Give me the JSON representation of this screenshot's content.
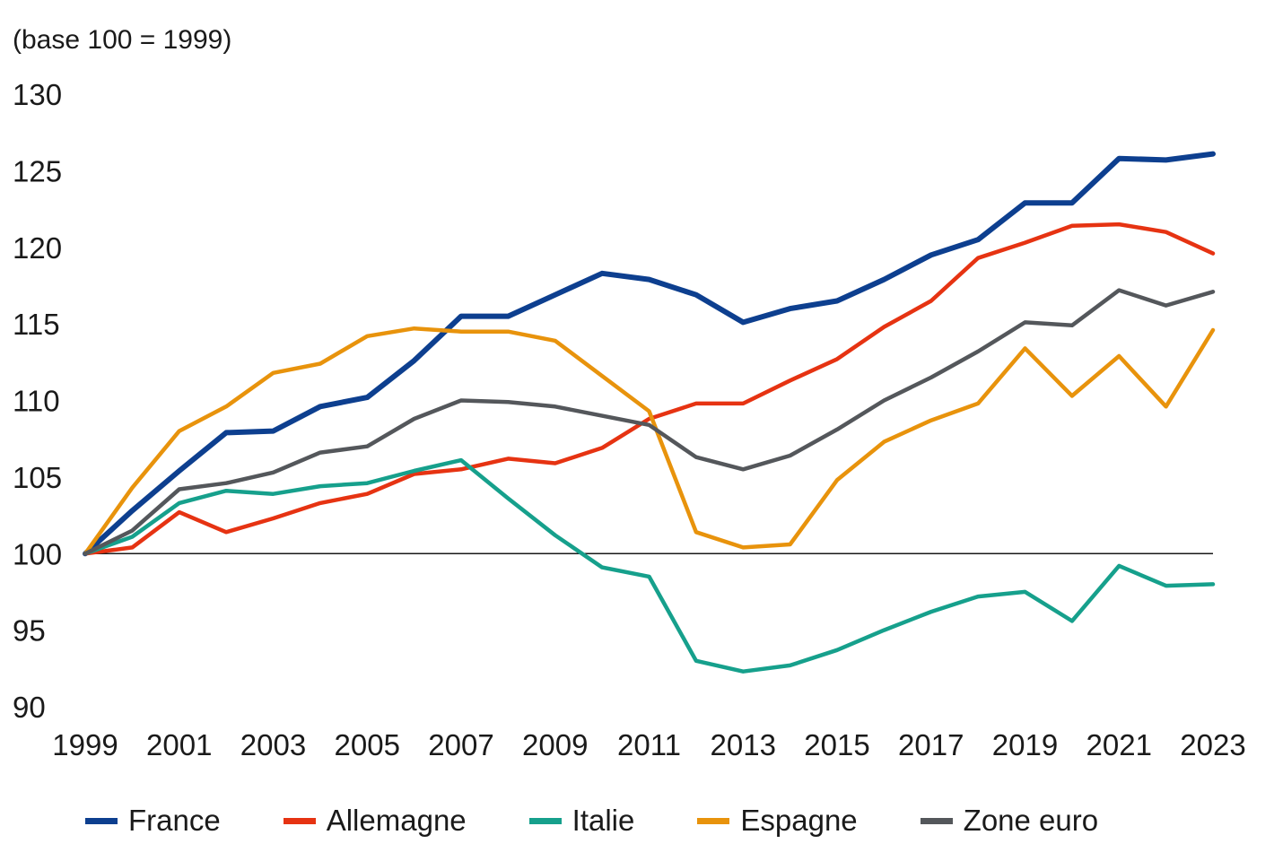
{
  "chart_data": {
    "type": "line",
    "title": "",
    "unit_label": "(base 100 = 1999)",
    "xlabel": "",
    "ylabel": "",
    "x": [
      1999,
      2000,
      2001,
      2002,
      2003,
      2004,
      2005,
      2006,
      2007,
      2008,
      2009,
      2010,
      2011,
      2012,
      2013,
      2014,
      2015,
      2016,
      2017,
      2018,
      2019,
      2020,
      2021,
      2022,
      2023
    ],
    "xticks": [
      "1999",
      "2001",
      "2003",
      "2005",
      "2007",
      "2009",
      "2011",
      "2013",
      "2015",
      "2017",
      "2019",
      "2021",
      "2023"
    ],
    "yticks": [
      "90",
      "95",
      "100",
      "105",
      "110",
      "115",
      "120",
      "125",
      "130"
    ],
    "ylim": [
      90,
      130
    ],
    "xlim": [
      1999,
      2023
    ],
    "reference_line": 100,
    "grid": false,
    "legend_position": "bottom",
    "series": [
      {
        "name": "France",
        "color": "#0d3f8f",
        "values": [
          100,
          102.8,
          105.4,
          107.9,
          108.0,
          109.6,
          110.2,
          112.6,
          115.5,
          115.5,
          116.9,
          118.3,
          117.9,
          116.9,
          115.1,
          116.0,
          116.5,
          117.9,
          119.5,
          120.5,
          122.9,
          122.9,
          125.8,
          125.7,
          126.1
        ]
      },
      {
        "name": "Allemagne",
        "color": "#e63312",
        "values": [
          100,
          100.4,
          102.7,
          101.4,
          102.3,
          103.3,
          103.9,
          105.2,
          105.5,
          106.2,
          105.9,
          106.9,
          108.8,
          109.8,
          109.8,
          111.3,
          112.7,
          114.8,
          116.5,
          119.3,
          120.3,
          121.4,
          121.5,
          121.0,
          119.6
        ]
      },
      {
        "name": "Italie",
        "color": "#16a08c",
        "values": [
          100,
          101.1,
          103.3,
          104.1,
          103.9,
          104.4,
          104.6,
          105.4,
          106.1,
          103.6,
          101.2,
          99.1,
          98.5,
          93.0,
          92.3,
          92.7,
          93.7,
          95.0,
          96.2,
          97.2,
          97.5,
          95.6,
          99.2,
          97.9,
          98.0
        ]
      },
      {
        "name": "Espagne",
        "color": "#e8930c",
        "values": [
          100,
          104.3,
          108.0,
          109.6,
          111.8,
          112.4,
          114.2,
          114.7,
          114.5,
          114.5,
          113.9,
          111.6,
          109.3,
          101.4,
          100.4,
          100.6,
          104.8,
          107.3,
          108.7,
          109.8,
          113.4,
          110.3,
          112.9,
          109.6,
          114.6
        ]
      },
      {
        "name": "Zone euro",
        "color": "#54575b",
        "values": [
          100,
          101.5,
          104.2,
          104.6,
          105.3,
          106.6,
          107.0,
          108.8,
          110.0,
          109.9,
          109.6,
          109.0,
          108.4,
          106.3,
          105.5,
          106.4,
          108.1,
          110.0,
          111.5,
          113.2,
          115.1,
          114.9,
          117.2,
          116.2,
          117.1
        ]
      }
    ]
  }
}
